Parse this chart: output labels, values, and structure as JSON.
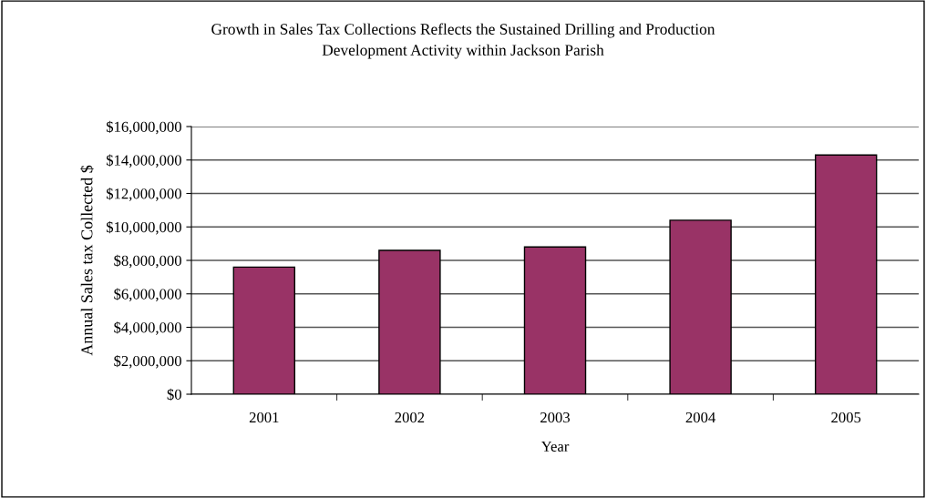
{
  "chart_data": {
    "type": "bar",
    "title": "Growth in Sales Tax Collections Reflects the Sustained Drilling and Production\nDevelopment Activity within Jackson Parish",
    "xlabel": "Year",
    "ylabel": "Annual Sales tax Collected $",
    "categories": [
      "2001",
      "2002",
      "2003",
      "2004",
      "2005"
    ],
    "values": [
      7600000,
      8600000,
      8800000,
      10400000,
      14300000
    ],
    "color": "#993366",
    "ylim": [
      0,
      16000000
    ],
    "yticks": [
      {
        "value": 0,
        "label": "$0"
      },
      {
        "value": 2000000,
        "label": "$2,000,000"
      },
      {
        "value": 4000000,
        "label": "$4,000,000"
      },
      {
        "value": 6000000,
        "label": "$6,000,000"
      },
      {
        "value": 8000000,
        "label": "$8,000,000"
      },
      {
        "value": 10000000,
        "label": "$10,000,000"
      },
      {
        "value": 12000000,
        "label": "$12,000,000"
      },
      {
        "value": 14000000,
        "label": "$14,000,000"
      },
      {
        "value": 16000000,
        "label": "$16,000,000"
      }
    ],
    "grid": "y"
  }
}
